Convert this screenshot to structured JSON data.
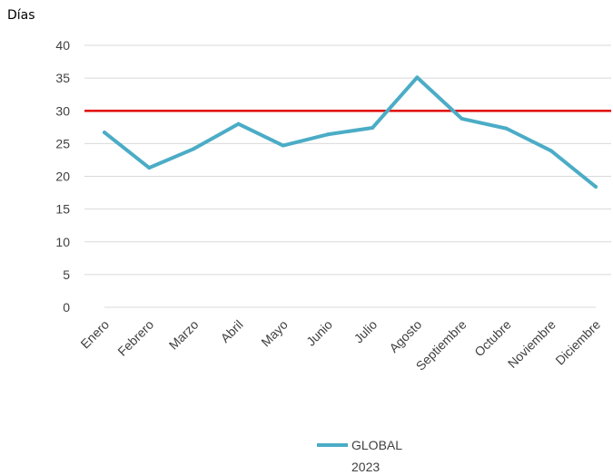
{
  "chart_data": {
    "type": "line",
    "ylabel": "Días",
    "categories": [
      "Enero",
      "Febrero",
      "Marzo",
      "Abril",
      "Mayo",
      "Junio",
      "Julio",
      "Agosto",
      "Septiembre",
      "Octubre",
      "Noviembre",
      "Diciembre"
    ],
    "series": [
      {
        "name": "GLOBAL",
        "name_line2": "2023",
        "color": "#4BACC6",
        "values": [
          26.7,
          21.3,
          24.2,
          28.0,
          24.7,
          26.4,
          27.4,
          35.1,
          28.8,
          27.3,
          23.9,
          18.4
        ]
      }
    ],
    "reference_line": {
      "value": 30,
      "color": "#E00000"
    },
    "ylim": [
      0,
      40
    ],
    "yticks": [
      "0",
      "5",
      "10",
      "15",
      "20",
      "25",
      "30",
      "35",
      "40"
    ],
    "grid": true,
    "gridline_color": "#D9D9D9",
    "legend_position": "bottom-center"
  }
}
